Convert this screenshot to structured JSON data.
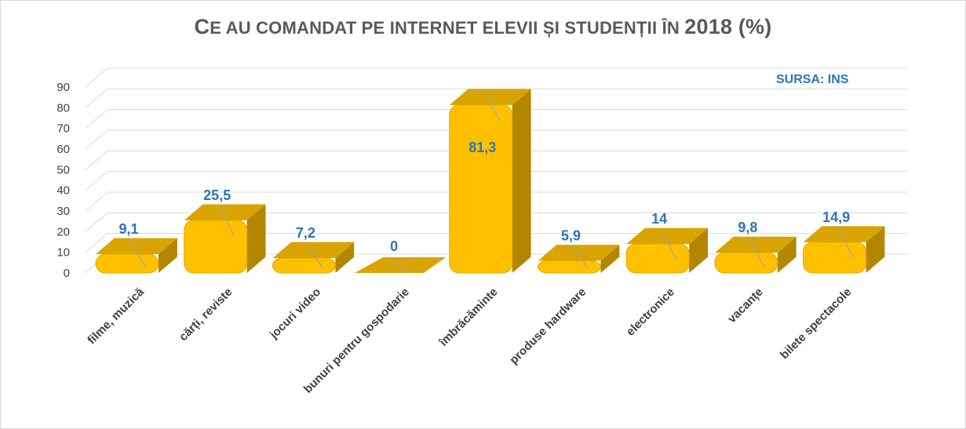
{
  "chart_data": {
    "type": "bar",
    "title": "Ce au comandat pe internet elevii și studenții în 2018 (%)",
    "title_parts": {
      "first_letter": "C",
      "rest_small_caps": "e au comandat pe internet elevii și studenții în ",
      "year": "2018 (%)"
    },
    "source_note": "SURSA: INS",
    "categories": [
      "filme, muzică",
      "cărți, reviste",
      "jocuri video",
      "bunuri pentru gospodarie",
      "îmbrăcăminte",
      "produse hardware",
      "electronice",
      "vacanțe",
      "bilete spectacole"
    ],
    "values": [
      9.1,
      25.5,
      7.2,
      0,
      81.3,
      5.9,
      14,
      9.8,
      14.9
    ],
    "value_labels": [
      "9,1",
      "25,5",
      "7,2",
      "0",
      "81,3",
      "5,9",
      "14",
      "9,8",
      "14,9"
    ],
    "ylim": [
      0,
      90
    ],
    "y_ticks": [
      0,
      10,
      20,
      30,
      40,
      50,
      60,
      70,
      80,
      90
    ],
    "grid": true,
    "style": "3d-bevel",
    "colors": {
      "bar_face": "#ffc000",
      "bar_top": "#d9a400",
      "bar_side": "#b38600",
      "label": "#2e75b6",
      "grid": "#d9d9d9",
      "text": "#404040",
      "title": "#595959"
    }
  }
}
